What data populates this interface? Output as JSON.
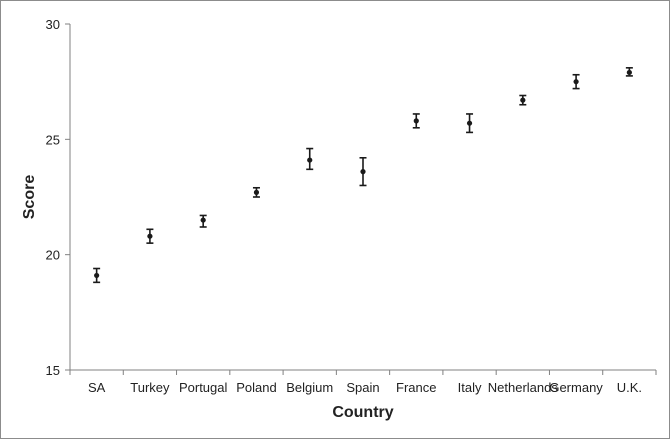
{
  "chart_data": {
    "type": "scatter",
    "error_bars": true,
    "categories": [
      "SA",
      "Turkey",
      "Portugal",
      "Poland",
      "Belgium",
      "Spain",
      "France",
      "Italy",
      "Netherlands",
      "Germany",
      "U.K."
    ],
    "values": [
      19.1,
      20.8,
      21.5,
      22.7,
      24.1,
      23.6,
      25.8,
      25.7,
      26.7,
      27.5,
      27.9
    ],
    "error_low": [
      18.8,
      20.5,
      21.2,
      22.5,
      23.7,
      23.0,
      25.5,
      25.3,
      26.5,
      27.2,
      27.75
    ],
    "error_high": [
      19.4,
      21.1,
      21.7,
      22.9,
      24.6,
      24.2,
      26.1,
      26.1,
      26.9,
      27.8,
      28.1
    ],
    "xlabel": "Country",
    "ylabel": "Score",
    "ylim": [
      15,
      30
    ],
    "yticks": [
      15,
      20,
      25,
      30
    ],
    "grid": false,
    "legend": "none",
    "colors": {
      "marker": "#1a1a1a",
      "axis": "#808080",
      "text": "#222222",
      "border": "#8c8c8c"
    }
  }
}
